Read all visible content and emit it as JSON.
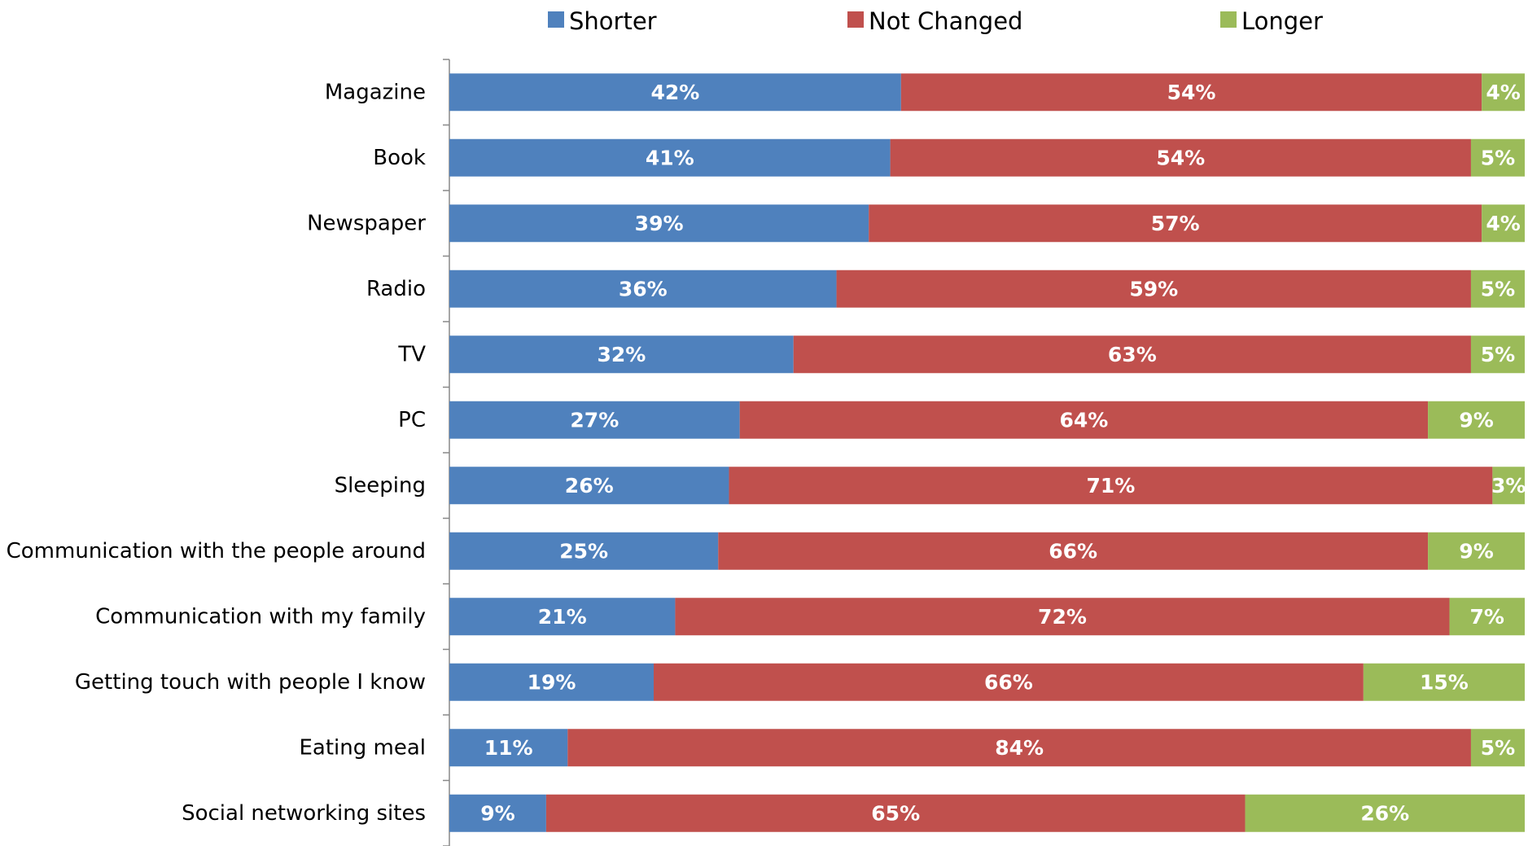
{
  "chart_data": {
    "type": "stacked_barh",
    "categories": [
      "Magazine",
      "Book",
      "Newspaper",
      "Radio",
      "TV",
      "PC",
      "Sleeping",
      "Communication with the people around",
      "Communication with my family",
      "Getting touch with people I know",
      "Eating meal",
      "Social networking sites"
    ],
    "series": [
      {
        "name": "Shorter",
        "color": "#4f81bd",
        "values": [
          42,
          41,
          39,
          36,
          32,
          27,
          26,
          25,
          21,
          19,
          11,
          9
        ],
        "value_labels": [
          "42%",
          "41%",
          "39%",
          "36%",
          "32%",
          "27%",
          "26%",
          "25%",
          "21%",
          "19%",
          "11%",
          "9%"
        ]
      },
      {
        "name": "Not Changed",
        "color": "#c0504d",
        "values": [
          54,
          54,
          57,
          59,
          63,
          64,
          71,
          66,
          72,
          66,
          84,
          65
        ],
        "value_labels": [
          "54%",
          "54%",
          "57%",
          "59%",
          "63%",
          "64%",
          "71%",
          "66%",
          "72%",
          "66%",
          "84%",
          "65%"
        ]
      },
      {
        "name": "Longer",
        "color": "#9bbb59",
        "values": [
          4,
          5,
          4,
          5,
          5,
          9,
          3,
          9,
          7,
          15,
          5,
          26
        ],
        "value_labels": [
          "4%",
          "5%",
          "4%",
          "5%",
          "5%",
          "9%",
          "3%",
          "9%",
          "7%",
          "15%",
          "5%",
          "26%"
        ]
      }
    ],
    "xlim": [
      0,
      100
    ],
    "legend": "top"
  }
}
